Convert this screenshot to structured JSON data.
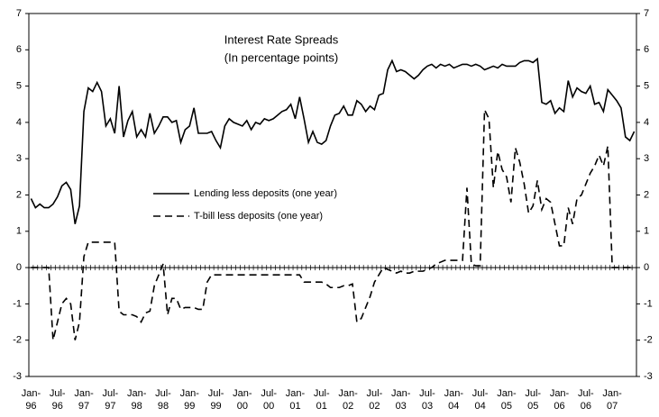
{
  "chart_data": {
    "type": "line",
    "title": "Interest Rate Spreads",
    "subtitle": "(In percentage points)",
    "categories": [
      "Jan-\n96",
      null,
      null,
      null,
      null,
      null,
      "Jul-\n96",
      null,
      null,
      null,
      null,
      null,
      "Jan-\n97",
      null,
      null,
      null,
      null,
      null,
      "Jul-\n97",
      null,
      null,
      null,
      null,
      null,
      "Jan-\n98",
      null,
      null,
      null,
      null,
      null,
      "Jul-\n98",
      null,
      null,
      null,
      null,
      null,
      "Jan-\n99",
      null,
      null,
      null,
      null,
      null,
      "Jul-\n99",
      null,
      null,
      null,
      null,
      null,
      "Jan-\n00",
      null,
      null,
      null,
      null,
      null,
      "Jul-\n00",
      null,
      null,
      null,
      null,
      null,
      "Jan-\n01",
      null,
      null,
      null,
      null,
      null,
      "Jul-\n01",
      null,
      null,
      null,
      null,
      null,
      "Jan-\n02",
      null,
      null,
      null,
      null,
      null,
      "Jul-\n02",
      null,
      null,
      null,
      null,
      null,
      "Jan-\n03",
      null,
      null,
      null,
      null,
      null,
      "Jul-\n03",
      null,
      null,
      null,
      null,
      null,
      "Jan-\n04",
      null,
      null,
      null,
      null,
      null,
      "Jul-\n04",
      null,
      null,
      null,
      null,
      null,
      "Jan-\n05",
      null,
      null,
      null,
      null,
      null,
      "Jul-\n05",
      null,
      null,
      null,
      null,
      null,
      "Jan-\n06",
      null,
      null,
      null,
      null,
      null,
      "Jul-\n06",
      null,
      null,
      null,
      null,
      null,
      "Jan-\n07",
      null,
      null,
      null,
      null,
      null
    ],
    "series": [
      {
        "name": "Lending less deposits (one year)",
        "color": "#000000",
        "dash": false,
        "values": [
          1.9,
          1.65,
          1.75,
          1.65,
          1.65,
          1.75,
          1.95,
          2.25,
          2.35,
          2.15,
          1.2,
          1.7,
          4.3,
          4.95,
          4.85,
          5.1,
          4.85,
          3.9,
          4.1,
          3.7,
          5.0,
          3.6,
          4.05,
          4.3,
          3.6,
          3.8,
          3.6,
          4.25,
          3.7,
          3.9,
          4.15,
          4.15,
          4.0,
          4.05,
          3.45,
          3.8,
          3.9,
          4.4,
          3.7,
          3.7,
          3.7,
          3.75,
          3.5,
          3.3,
          3.9,
          4.1,
          4.0,
          3.95,
          3.9,
          4.05,
          3.8,
          4.0,
          3.95,
          4.1,
          4.05,
          4.1,
          4.2,
          4.3,
          4.35,
          4.5,
          4.1,
          4.7,
          4.1,
          3.45,
          3.75,
          3.45,
          3.4,
          3.5,
          3.9,
          4.2,
          4.25,
          4.45,
          4.2,
          4.2,
          4.6,
          4.5,
          4.3,
          4.45,
          4.35,
          4.75,
          4.8,
          5.45,
          5.7,
          5.4,
          5.45,
          5.4,
          5.3,
          5.2,
          5.3,
          5.45,
          5.55,
          5.6,
          5.5,
          5.6,
          5.55,
          5.6,
          5.5,
          5.55,
          5.6,
          5.6,
          5.55,
          5.6,
          5.55,
          5.45,
          5.5,
          5.55,
          5.5,
          5.6,
          5.55,
          5.55,
          5.55,
          5.65,
          5.7,
          5.7,
          5.65,
          5.75,
          4.55,
          4.5,
          4.6,
          4.25,
          4.4,
          4.3,
          5.15,
          4.7,
          4.95,
          4.85,
          4.8,
          5.0,
          4.5,
          4.55,
          4.3,
          4.9,
          4.75,
          4.6,
          4.4,
          3.6,
          3.5,
          3.75
        ]
      },
      {
        "name": "T-bill less deposits (one year)",
        "color": "#000000",
        "dash": true,
        "values": [
          0,
          0,
          0,
          0,
          0,
          -2.0,
          -1.5,
          -1.0,
          -0.85,
          -1.0,
          -2.0,
          -1.5,
          0.3,
          0.7,
          0.7,
          0.7,
          0.7,
          0.7,
          0.7,
          0.7,
          -1.2,
          -1.3,
          -1.3,
          -1.3,
          -1.35,
          -1.5,
          -1.25,
          -1.2,
          -0.5,
          -0.2,
          0.1,
          -1.3,
          -0.85,
          -0.85,
          -1.15,
          -1.1,
          -1.1,
          -1.1,
          -1.15,
          -1.15,
          -0.4,
          -0.2,
          -0.2,
          -0.2,
          -0.2,
          -0.2,
          -0.2,
          -0.2,
          -0.2,
          -0.2,
          -0.2,
          -0.2,
          -0.2,
          -0.2,
          -0.2,
          -0.2,
          -0.2,
          -0.2,
          -0.2,
          -0.2,
          -0.2,
          -0.2,
          -0.4,
          -0.4,
          -0.4,
          -0.4,
          -0.4,
          -0.45,
          -0.55,
          -0.55,
          -0.55,
          -0.5,
          -0.5,
          -0.45,
          -1.5,
          -1.4,
          -1.1,
          -0.8,
          -0.4,
          -0.2,
          0,
          -0.05,
          -0.1,
          -0.15,
          -0.1,
          -0.15,
          -0.15,
          -0.1,
          -0.1,
          -0.1,
          -0.05,
          0,
          0.1,
          0.15,
          0.2,
          0.2,
          0.2,
          0.2,
          0.2,
          2.2,
          0.1,
          0.05,
          0.05,
          4.35,
          4.1,
          2.2,
          3.2,
          2.7,
          2.5,
          1.8,
          3.3,
          2.9,
          2.3,
          1.5,
          1.7,
          2.4,
          1.6,
          1.9,
          1.8,
          1.2,
          0.6,
          0.6,
          1.65,
          1.2,
          1.9,
          2.0,
          2.3,
          2.6,
          2.8,
          3.1,
          2.8,
          3.35,
          0,
          0,
          0,
          0,
          0,
          0
        ]
      }
    ],
    "ylim": [
      -3,
      7
    ],
    "yticks": [
      -3,
      -2,
      -1,
      0,
      1,
      2,
      3,
      4,
      5,
      6,
      7
    ],
    "y2lim": [
      -3,
      7
    ],
    "y2ticks": [
      -3,
      -2,
      -1,
      0,
      1,
      2,
      3,
      4,
      5,
      6,
      7
    ]
  }
}
